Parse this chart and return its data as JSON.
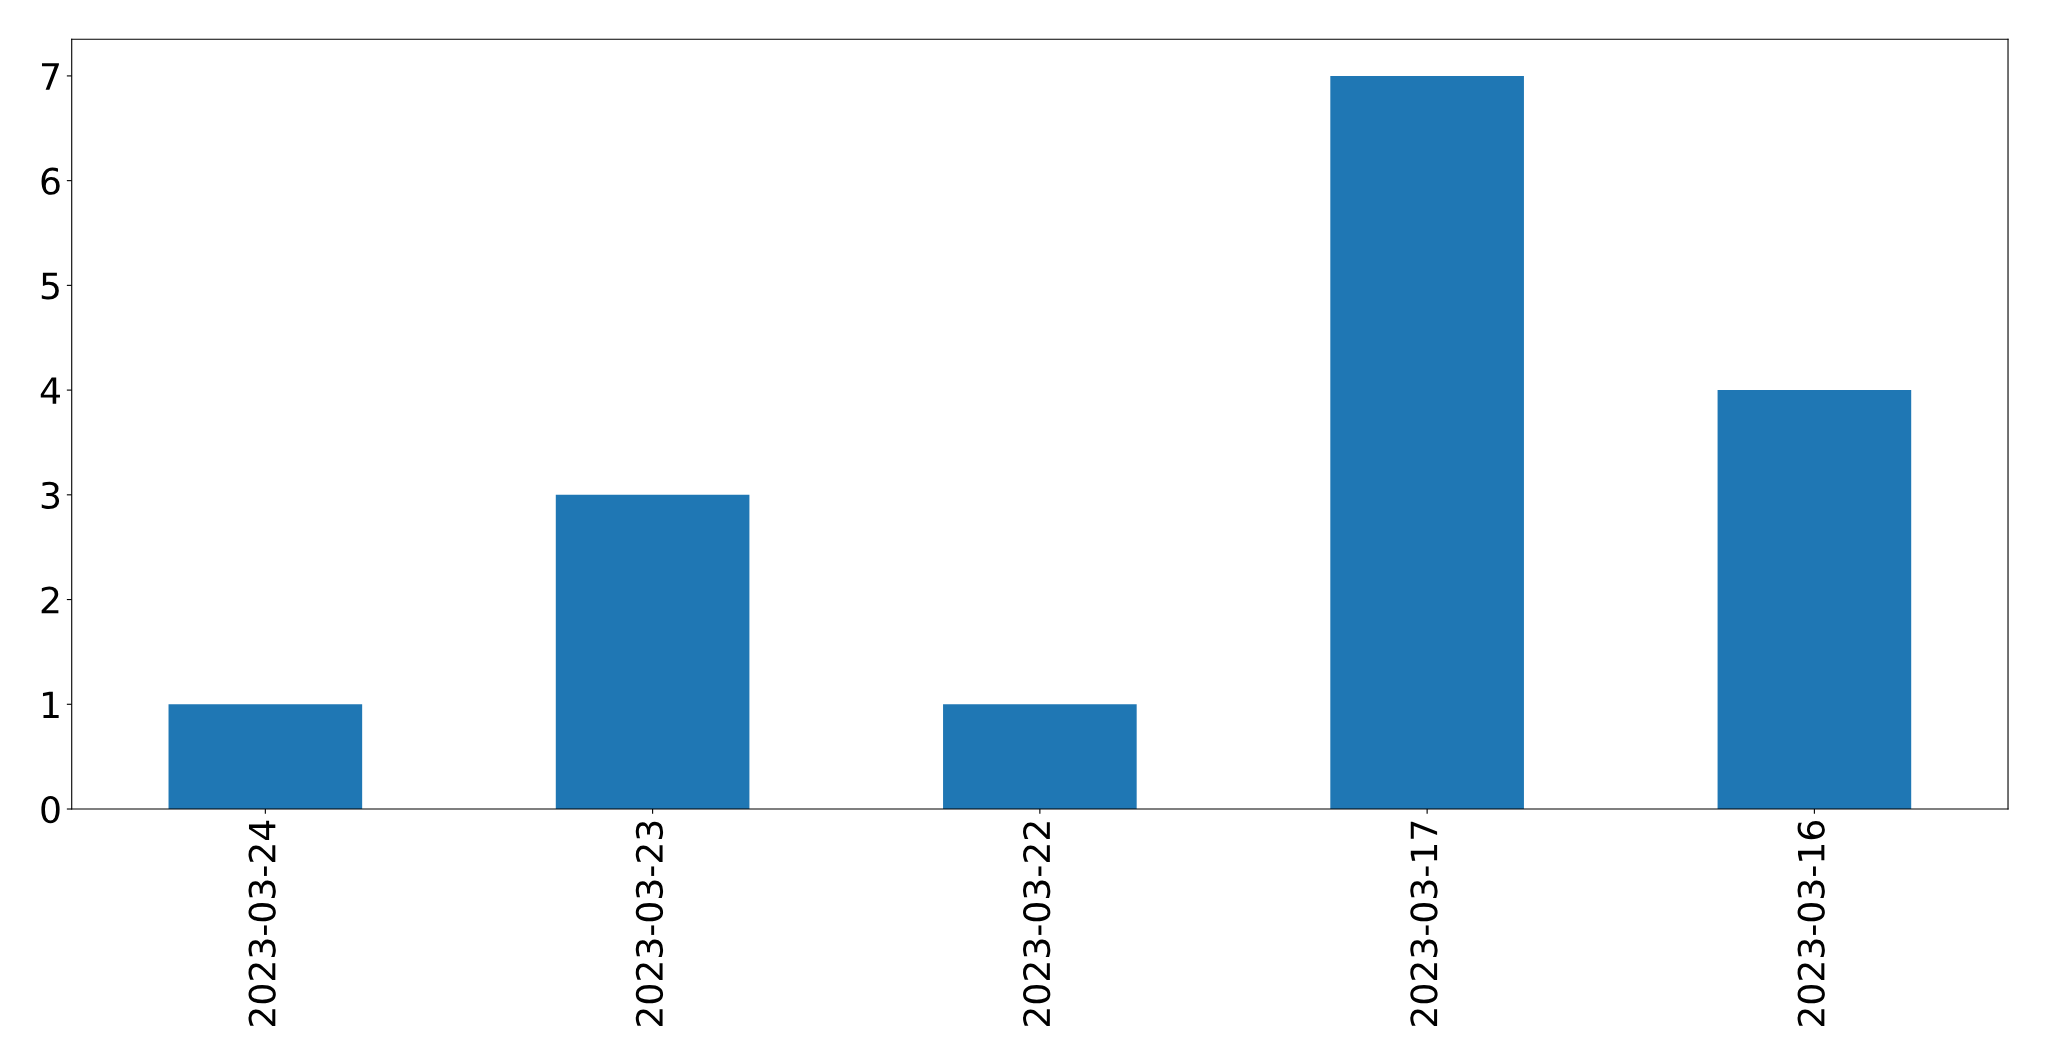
{
  "chart_data": {
    "type": "bar",
    "categories": [
      "2023-03-24",
      "2023-03-23",
      "2023-03-22",
      "2023-03-17",
      "2023-03-16"
    ],
    "values": [
      1,
      3,
      1,
      7,
      4
    ],
    "color": "#1f77b4",
    "ylim": [
      0,
      7.35
    ],
    "yticks": [
      0,
      1,
      2,
      3,
      4,
      5,
      6,
      7
    ],
    "grid": false,
    "legend": false
  }
}
